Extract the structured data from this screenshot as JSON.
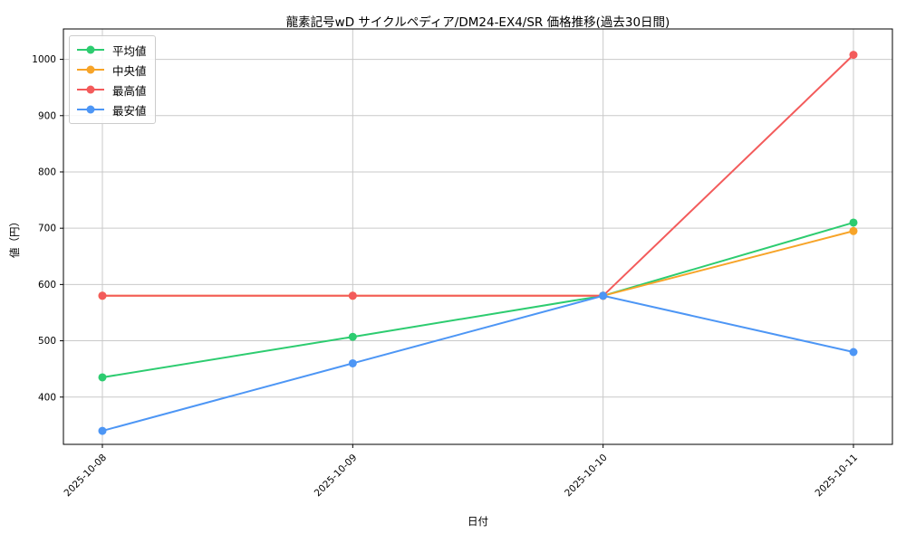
{
  "chart_data": {
    "type": "line",
    "title": "龍素記号wD サイクルペディア/DM24-EX4/SR 価格推移(過去30日間)",
    "xlabel": "日付",
    "ylabel": "値（円）",
    "categories": [
      "2025-10-08",
      "2025-10-09",
      "2025-10-10",
      "2025-10-11"
    ],
    "series": [
      {
        "name": "平均値",
        "color": "#2dcc70",
        "values": [
          435,
          507,
          580,
          710
        ]
      },
      {
        "name": "中央値",
        "color": "#f7a428",
        "values": [
          580,
          580,
          580,
          695
        ]
      },
      {
        "name": "最高値",
        "color": "#f35b5b",
        "values": [
          580,
          580,
          580,
          1008
        ]
      },
      {
        "name": "最安値",
        "color": "#4d96f5",
        "values": [
          340,
          460,
          580,
          480
        ]
      }
    ],
    "yticks": [
      400,
      500,
      600,
      700,
      800,
      900,
      1000
    ],
    "ylim": [
      316,
      1054
    ],
    "grid": true,
    "legend_position": "upper left",
    "colors": {
      "grid": "#c9c9c9",
      "spine": "#000000",
      "background": "#ffffff"
    }
  }
}
